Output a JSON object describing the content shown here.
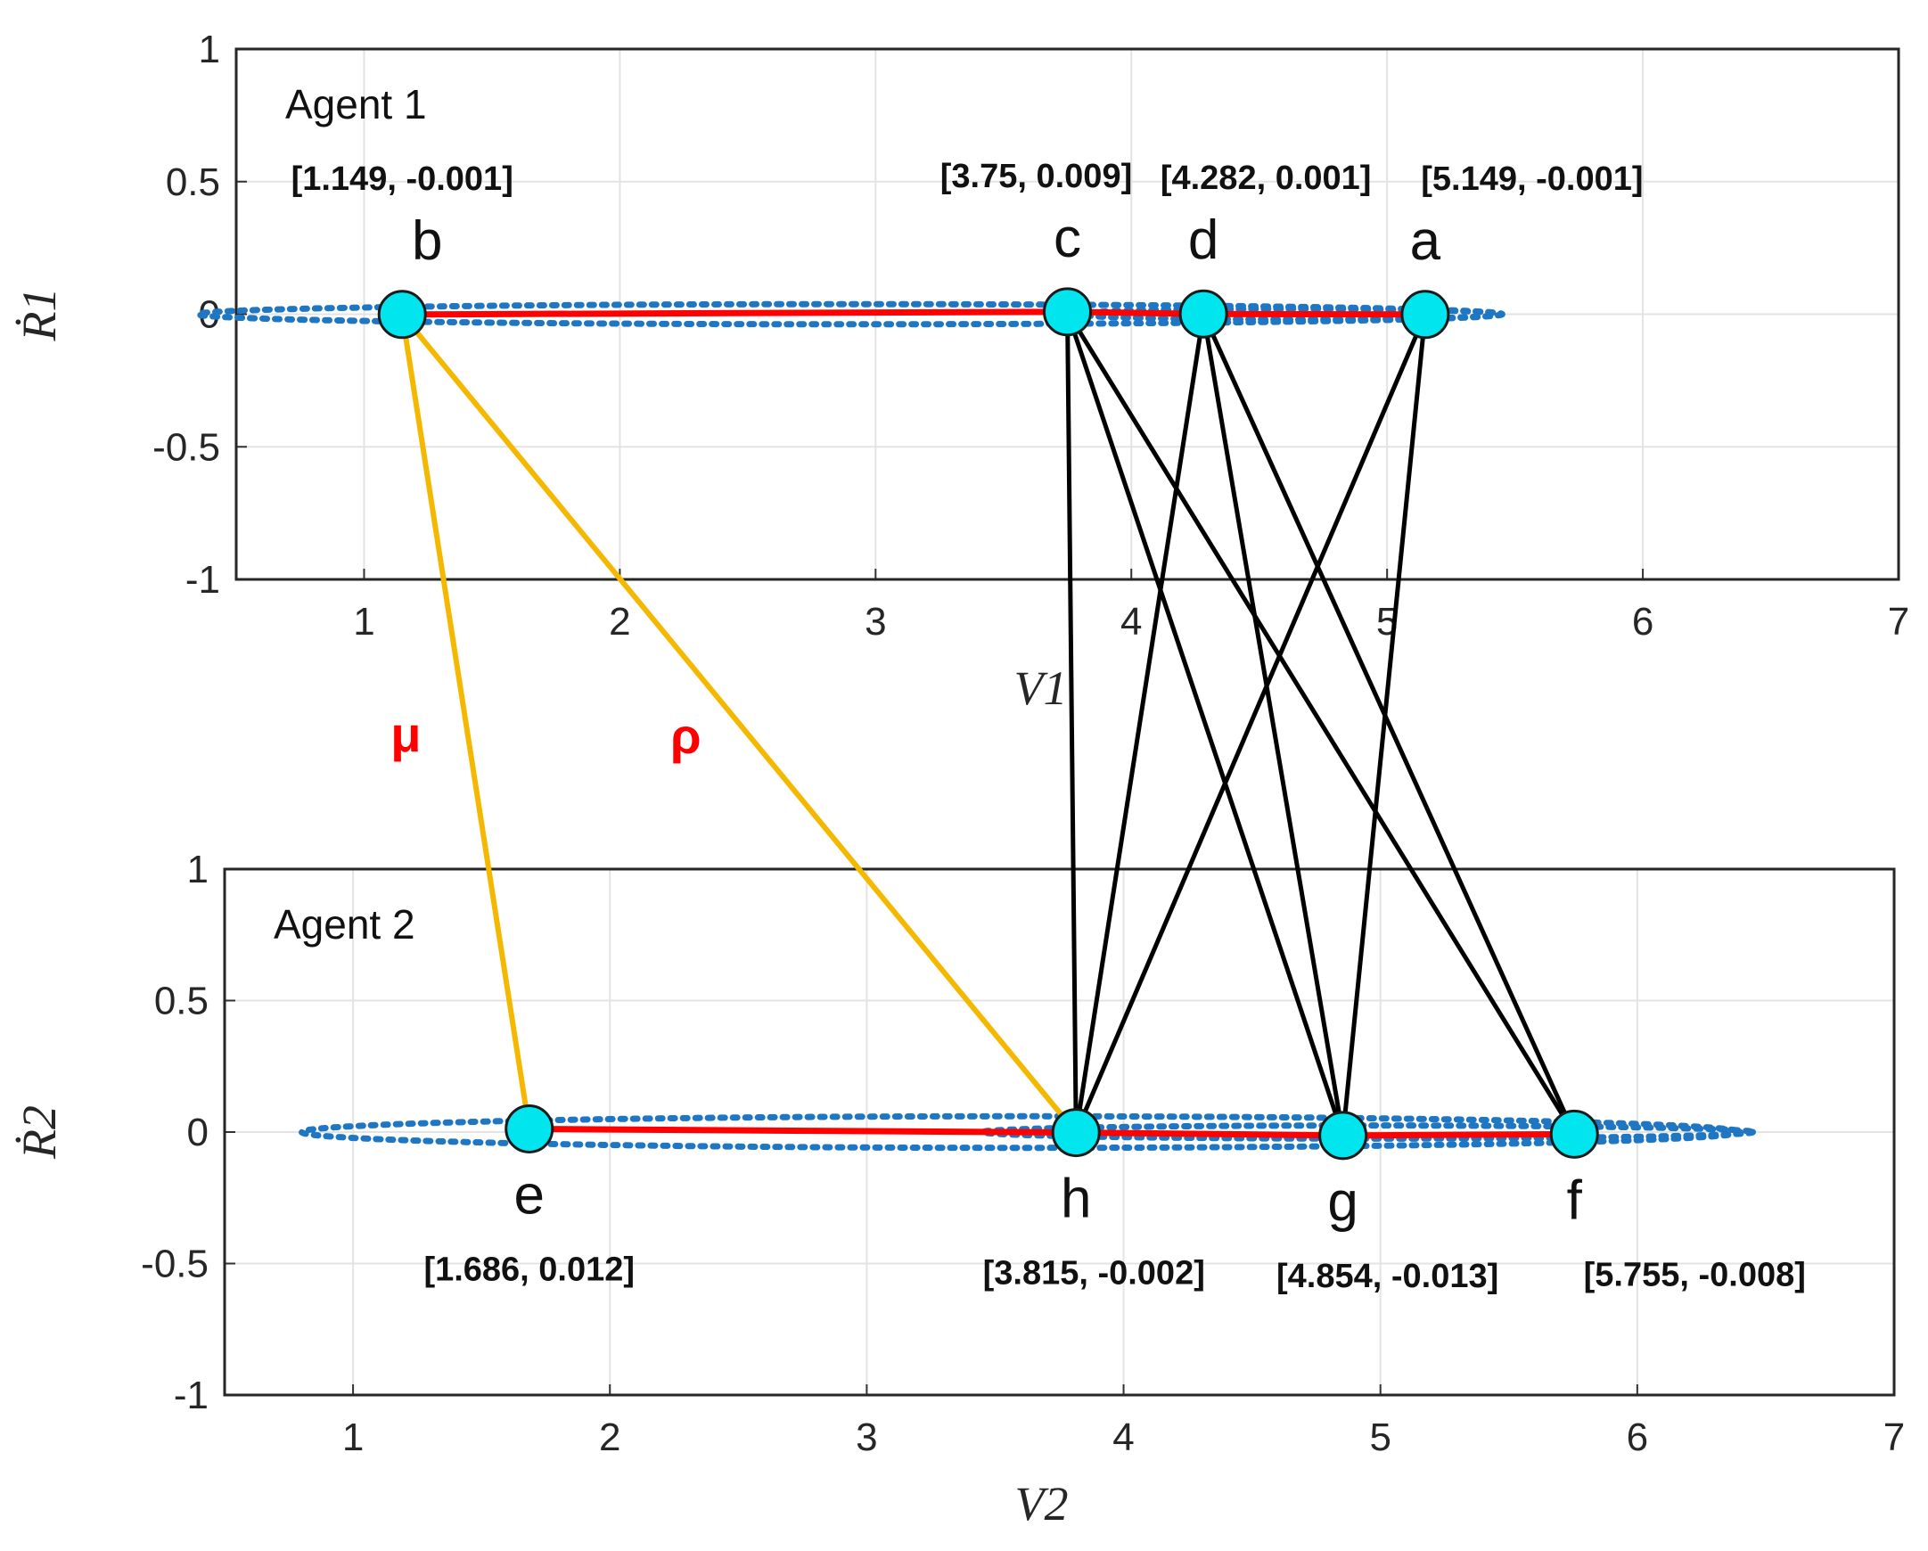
{
  "chart_data": [
    {
      "type": "scatter",
      "name": "agent1",
      "title": "Agent 1",
      "xlabel": "V1",
      "ylabel": "Ṙ1",
      "xlim": [
        0.5,
        7
      ],
      "ylim": [
        -1,
        1
      ],
      "xticks": [
        "1",
        "2",
        "3",
        "4",
        "5",
        "6",
        "7"
      ],
      "yticks": [
        "1",
        "0.5",
        "0",
        "-0.5",
        "-1"
      ],
      "grid": true,
      "orbits": [
        {
          "cx": 2.9,
          "rx": 2.55,
          "ry": 0.038
        },
        {
          "cx": 4.62,
          "rx": 0.83,
          "ry": 0.02
        }
      ],
      "points": [
        {
          "label": "b",
          "x": 1.149,
          "y": -0.001,
          "coord": "[1.149, -0.001]"
        },
        {
          "label": "c",
          "x": 3.75,
          "y": 0.009,
          "coord": "[3.75, 0.009]"
        },
        {
          "label": "d",
          "x": 4.282,
          "y": 0.001,
          "coord": "[4.282, 0.001]"
        },
        {
          "label": "a",
          "x": 5.149,
          "y": -0.001,
          "coord": "[5.149, -0.001]"
        }
      ]
    },
    {
      "type": "scatter",
      "name": "agent2",
      "title": "Agent 2",
      "xlabel": "V2",
      "ylabel": "Ṙ2",
      "xlim": [
        0.5,
        7
      ],
      "ylim": [
        -1,
        1
      ],
      "xticks": [
        "1",
        "2",
        "3",
        "4",
        "5",
        "6",
        "7"
      ],
      "yticks": [
        "1",
        "0.5",
        "0",
        "-0.5",
        "-1"
      ],
      "grid": true,
      "orbits": [
        {
          "cx": 3.6,
          "rx": 2.8,
          "ry": 0.06
        },
        {
          "cx": 4.95,
          "rx": 1.5,
          "ry": 0.025
        }
      ],
      "points": [
        {
          "label": "e",
          "x": 1.686,
          "y": 0.012,
          "coord": "[1.686, 0.012]"
        },
        {
          "label": "h",
          "x": 3.815,
          "y": -0.002,
          "coord": "[3.815, -0.002]"
        },
        {
          "label": "g",
          "x": 4.854,
          "y": -0.013,
          "coord": "[4.854, -0.013]"
        },
        {
          "label": "f",
          "x": 5.755,
          "y": -0.008,
          "coord": "[5.755, -0.008]"
        }
      ]
    }
  ],
  "connections": {
    "coupling": [
      {
        "from": "b",
        "to": "e",
        "symbol": "μ"
      },
      {
        "from": "b",
        "to": "h",
        "symbol": "ρ"
      }
    ],
    "links": [
      [
        "c",
        "h"
      ],
      [
        "c",
        "g"
      ],
      [
        "c",
        "f"
      ],
      [
        "d",
        "h"
      ],
      [
        "d",
        "g"
      ],
      [
        "d",
        "f"
      ],
      [
        "a",
        "h"
      ],
      [
        "a",
        "g"
      ]
    ]
  },
  "colors": {
    "orbit": "#1f77c4",
    "chain": "#ff0000",
    "node": "#00e5ee",
    "coupling": "#f5b800",
    "link": "#000000",
    "greek": "#ff0000"
  }
}
